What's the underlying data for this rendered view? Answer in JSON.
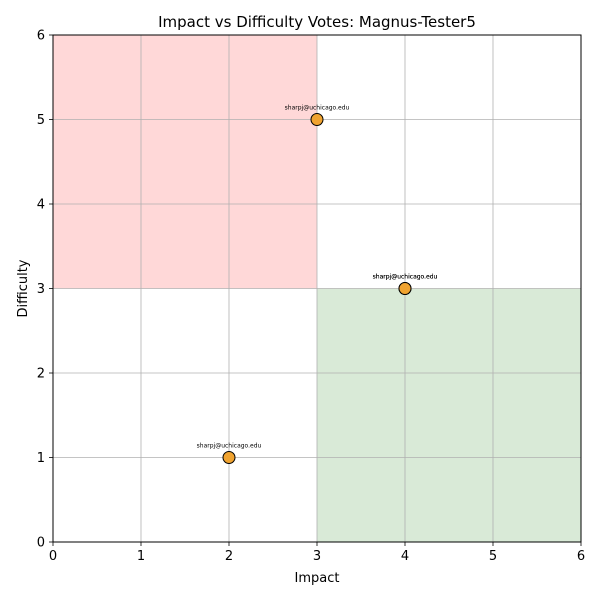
{
  "chart_data": {
    "type": "scatter",
    "title": "Impact vs Difficulty Votes: Magnus-Tester5",
    "xlabel": "Impact",
    "ylabel": "Difficulty",
    "xlim": [
      0,
      6
    ],
    "ylim": [
      0,
      6
    ],
    "xticks": [
      "0",
      "1",
      "2",
      "3",
      "4",
      "5",
      "6"
    ],
    "yticks": [
      "0",
      "1",
      "2",
      "3",
      "4",
      "5",
      "6"
    ],
    "grid": true,
    "regions": [
      {
        "x": [
          0,
          3
        ],
        "y": [
          3,
          6
        ],
        "color": "#ffd8d8"
      },
      {
        "x": [
          3,
          6
        ],
        "y": [
          0,
          3
        ],
        "color": "#d9ead7"
      }
    ],
    "points": [
      {
        "x": 3,
        "y": 5,
        "label": "sharpj@uchicago.edu"
      },
      {
        "x": 4,
        "y": 3,
        "label": "sharpj@uchicago.edu"
      },
      {
        "x": 4,
        "y": 3,
        "label": "sharpj@uchicago.edu"
      },
      {
        "x": 2,
        "y": 1,
        "label": "sharpj@uchicago.edu"
      }
    ],
    "marker_color": "#f0a330",
    "marker_edge_color": "#000000",
    "grid_color": "#b0b0b0"
  }
}
